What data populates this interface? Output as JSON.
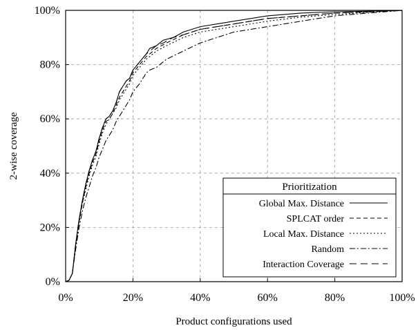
{
  "chart_data": {
    "type": "line",
    "xlabel": "Product configurations used",
    "ylabel": "2-wise coverage",
    "xlim": [
      0,
      100
    ],
    "ylim": [
      0,
      100
    ],
    "x_ticks": [
      "0%",
      "20%",
      "40%",
      "60%",
      "80%",
      "100%"
    ],
    "y_ticks": [
      "0%",
      "20%",
      "40%",
      "60%",
      "80%",
      "100%"
    ],
    "grid": true,
    "legend": {
      "title": "Prioritization",
      "placement": "bottom-right"
    },
    "series": [
      {
        "name": "Global Max. Distance",
        "dash": "solid",
        "points": [
          [
            0,
            0
          ],
          [
            1,
            0.5
          ],
          [
            2,
            3
          ],
          [
            3,
            14
          ],
          [
            4,
            23
          ],
          [
            5,
            30
          ],
          [
            6,
            36
          ],
          [
            7,
            41
          ],
          [
            8,
            45
          ],
          [
            9,
            48
          ],
          [
            10,
            53
          ],
          [
            11,
            57
          ],
          [
            12,
            60
          ],
          [
            13,
            61
          ],
          [
            14,
            63
          ],
          [
            15,
            66
          ],
          [
            16,
            70
          ],
          [
            17,
            72
          ],
          [
            18,
            74
          ],
          [
            19,
            75
          ],
          [
            20,
            78
          ],
          [
            22,
            81
          ],
          [
            24,
            84
          ],
          [
            25,
            86
          ],
          [
            27,
            87
          ],
          [
            29,
            89
          ],
          [
            32,
            90
          ],
          [
            35,
            92
          ],
          [
            40,
            94
          ],
          [
            45,
            95
          ],
          [
            50,
            96
          ],
          [
            55,
            97
          ],
          [
            60,
            98
          ],
          [
            70,
            99
          ],
          [
            80,
            99.5
          ],
          [
            90,
            99.7
          ],
          [
            100,
            100
          ]
        ]
      },
      {
        "name": "SPLCAT order",
        "dash": "dashed",
        "points": [
          [
            0,
            0
          ],
          [
            1,
            0.5
          ],
          [
            2,
            3
          ],
          [
            3,
            14
          ],
          [
            4,
            22
          ],
          [
            5,
            29
          ],
          [
            6,
            35
          ],
          [
            7,
            40
          ],
          [
            8,
            44
          ],
          [
            9,
            47
          ],
          [
            10,
            52
          ],
          [
            11,
            56
          ],
          [
            12,
            59
          ],
          [
            13,
            60
          ],
          [
            14,
            62
          ],
          [
            15,
            65
          ],
          [
            16,
            68
          ],
          [
            17,
            70
          ],
          [
            18,
            72
          ],
          [
            19,
            74
          ],
          [
            20,
            77
          ],
          [
            22,
            80
          ],
          [
            24,
            83
          ],
          [
            25,
            84
          ],
          [
            27,
            86
          ],
          [
            30,
            88
          ],
          [
            35,
            91
          ],
          [
            40,
            93
          ],
          [
            45,
            94
          ],
          [
            50,
            95
          ],
          [
            55,
            96
          ],
          [
            60,
            97
          ],
          [
            70,
            98
          ],
          [
            80,
            99
          ],
          [
            90,
            99.5
          ],
          [
            100,
            100
          ]
        ]
      },
      {
        "name": "Local Max. Distance",
        "dash": "dotted",
        "points": [
          [
            0,
            0
          ],
          [
            1,
            0.5
          ],
          [
            2,
            3
          ],
          [
            3,
            13
          ],
          [
            4,
            22
          ],
          [
            5,
            29
          ],
          [
            6,
            34
          ],
          [
            7,
            39
          ],
          [
            8,
            43
          ],
          [
            9,
            46
          ],
          [
            10,
            51
          ],
          [
            11,
            55
          ],
          [
            12,
            58
          ],
          [
            13,
            60
          ],
          [
            14,
            62
          ],
          [
            15,
            64
          ],
          [
            16,
            67
          ],
          [
            17,
            69
          ],
          [
            18,
            71
          ],
          [
            19,
            73
          ],
          [
            20,
            76
          ],
          [
            22,
            79
          ],
          [
            24,
            82
          ],
          [
            25,
            83
          ],
          [
            27,
            85
          ],
          [
            30,
            87
          ],
          [
            35,
            90
          ],
          [
            40,
            92
          ],
          [
            45,
            93
          ],
          [
            50,
            94
          ],
          [
            55,
            95
          ],
          [
            60,
            96
          ],
          [
            70,
            97.5
          ],
          [
            80,
            98.5
          ],
          [
            90,
            99.3
          ],
          [
            100,
            100
          ]
        ]
      },
      {
        "name": "Random",
        "dash": "dashdot",
        "points": [
          [
            0,
            0
          ],
          [
            1,
            0.5
          ],
          [
            2,
            3
          ],
          [
            3,
            12
          ],
          [
            4,
            20
          ],
          [
            5,
            26
          ],
          [
            6,
            31
          ],
          [
            7,
            35
          ],
          [
            8,
            39
          ],
          [
            9,
            42
          ],
          [
            10,
            46
          ],
          [
            11,
            49
          ],
          [
            12,
            52
          ],
          [
            13,
            54
          ],
          [
            14,
            56
          ],
          [
            15,
            59
          ],
          [
            16,
            61
          ],
          [
            17,
            63
          ],
          [
            18,
            65
          ],
          [
            19,
            67
          ],
          [
            20,
            70
          ],
          [
            22,
            73
          ],
          [
            24,
            77
          ],
          [
            25,
            78
          ],
          [
            27,
            79
          ],
          [
            30,
            82
          ],
          [
            35,
            85
          ],
          [
            40,
            88
          ],
          [
            45,
            90
          ],
          [
            50,
            92
          ],
          [
            55,
            93
          ],
          [
            60,
            94
          ],
          [
            70,
            96
          ],
          [
            80,
            98
          ],
          [
            90,
            99
          ],
          [
            100,
            100
          ]
        ]
      },
      {
        "name": "Interaction Coverage",
        "dash": "longdash",
        "points": [
          [
            0,
            0
          ],
          [
            1,
            0.5
          ],
          [
            2,
            3
          ],
          [
            3,
            14
          ],
          [
            4,
            23
          ],
          [
            5,
            30
          ],
          [
            6,
            36
          ],
          [
            7,
            41
          ],
          [
            8,
            45
          ],
          [
            9,
            48
          ],
          [
            10,
            53
          ],
          [
            11,
            57
          ],
          [
            12,
            60
          ],
          [
            13,
            61
          ],
          [
            14,
            63
          ],
          [
            15,
            66
          ],
          [
            16,
            70
          ],
          [
            17,
            72
          ],
          [
            18,
            74
          ],
          [
            19,
            75
          ],
          [
            20,
            78
          ],
          [
            22,
            81
          ],
          [
            24,
            84
          ],
          [
            25,
            85
          ],
          [
            27,
            87
          ],
          [
            29,
            88
          ],
          [
            32,
            90
          ],
          [
            35,
            91
          ],
          [
            40,
            93
          ],
          [
            45,
            94
          ],
          [
            50,
            95
          ],
          [
            55,
            96
          ],
          [
            60,
            97
          ],
          [
            70,
            98
          ],
          [
            80,
            99
          ],
          [
            90,
            99.5
          ],
          [
            100,
            100
          ]
        ]
      }
    ]
  }
}
